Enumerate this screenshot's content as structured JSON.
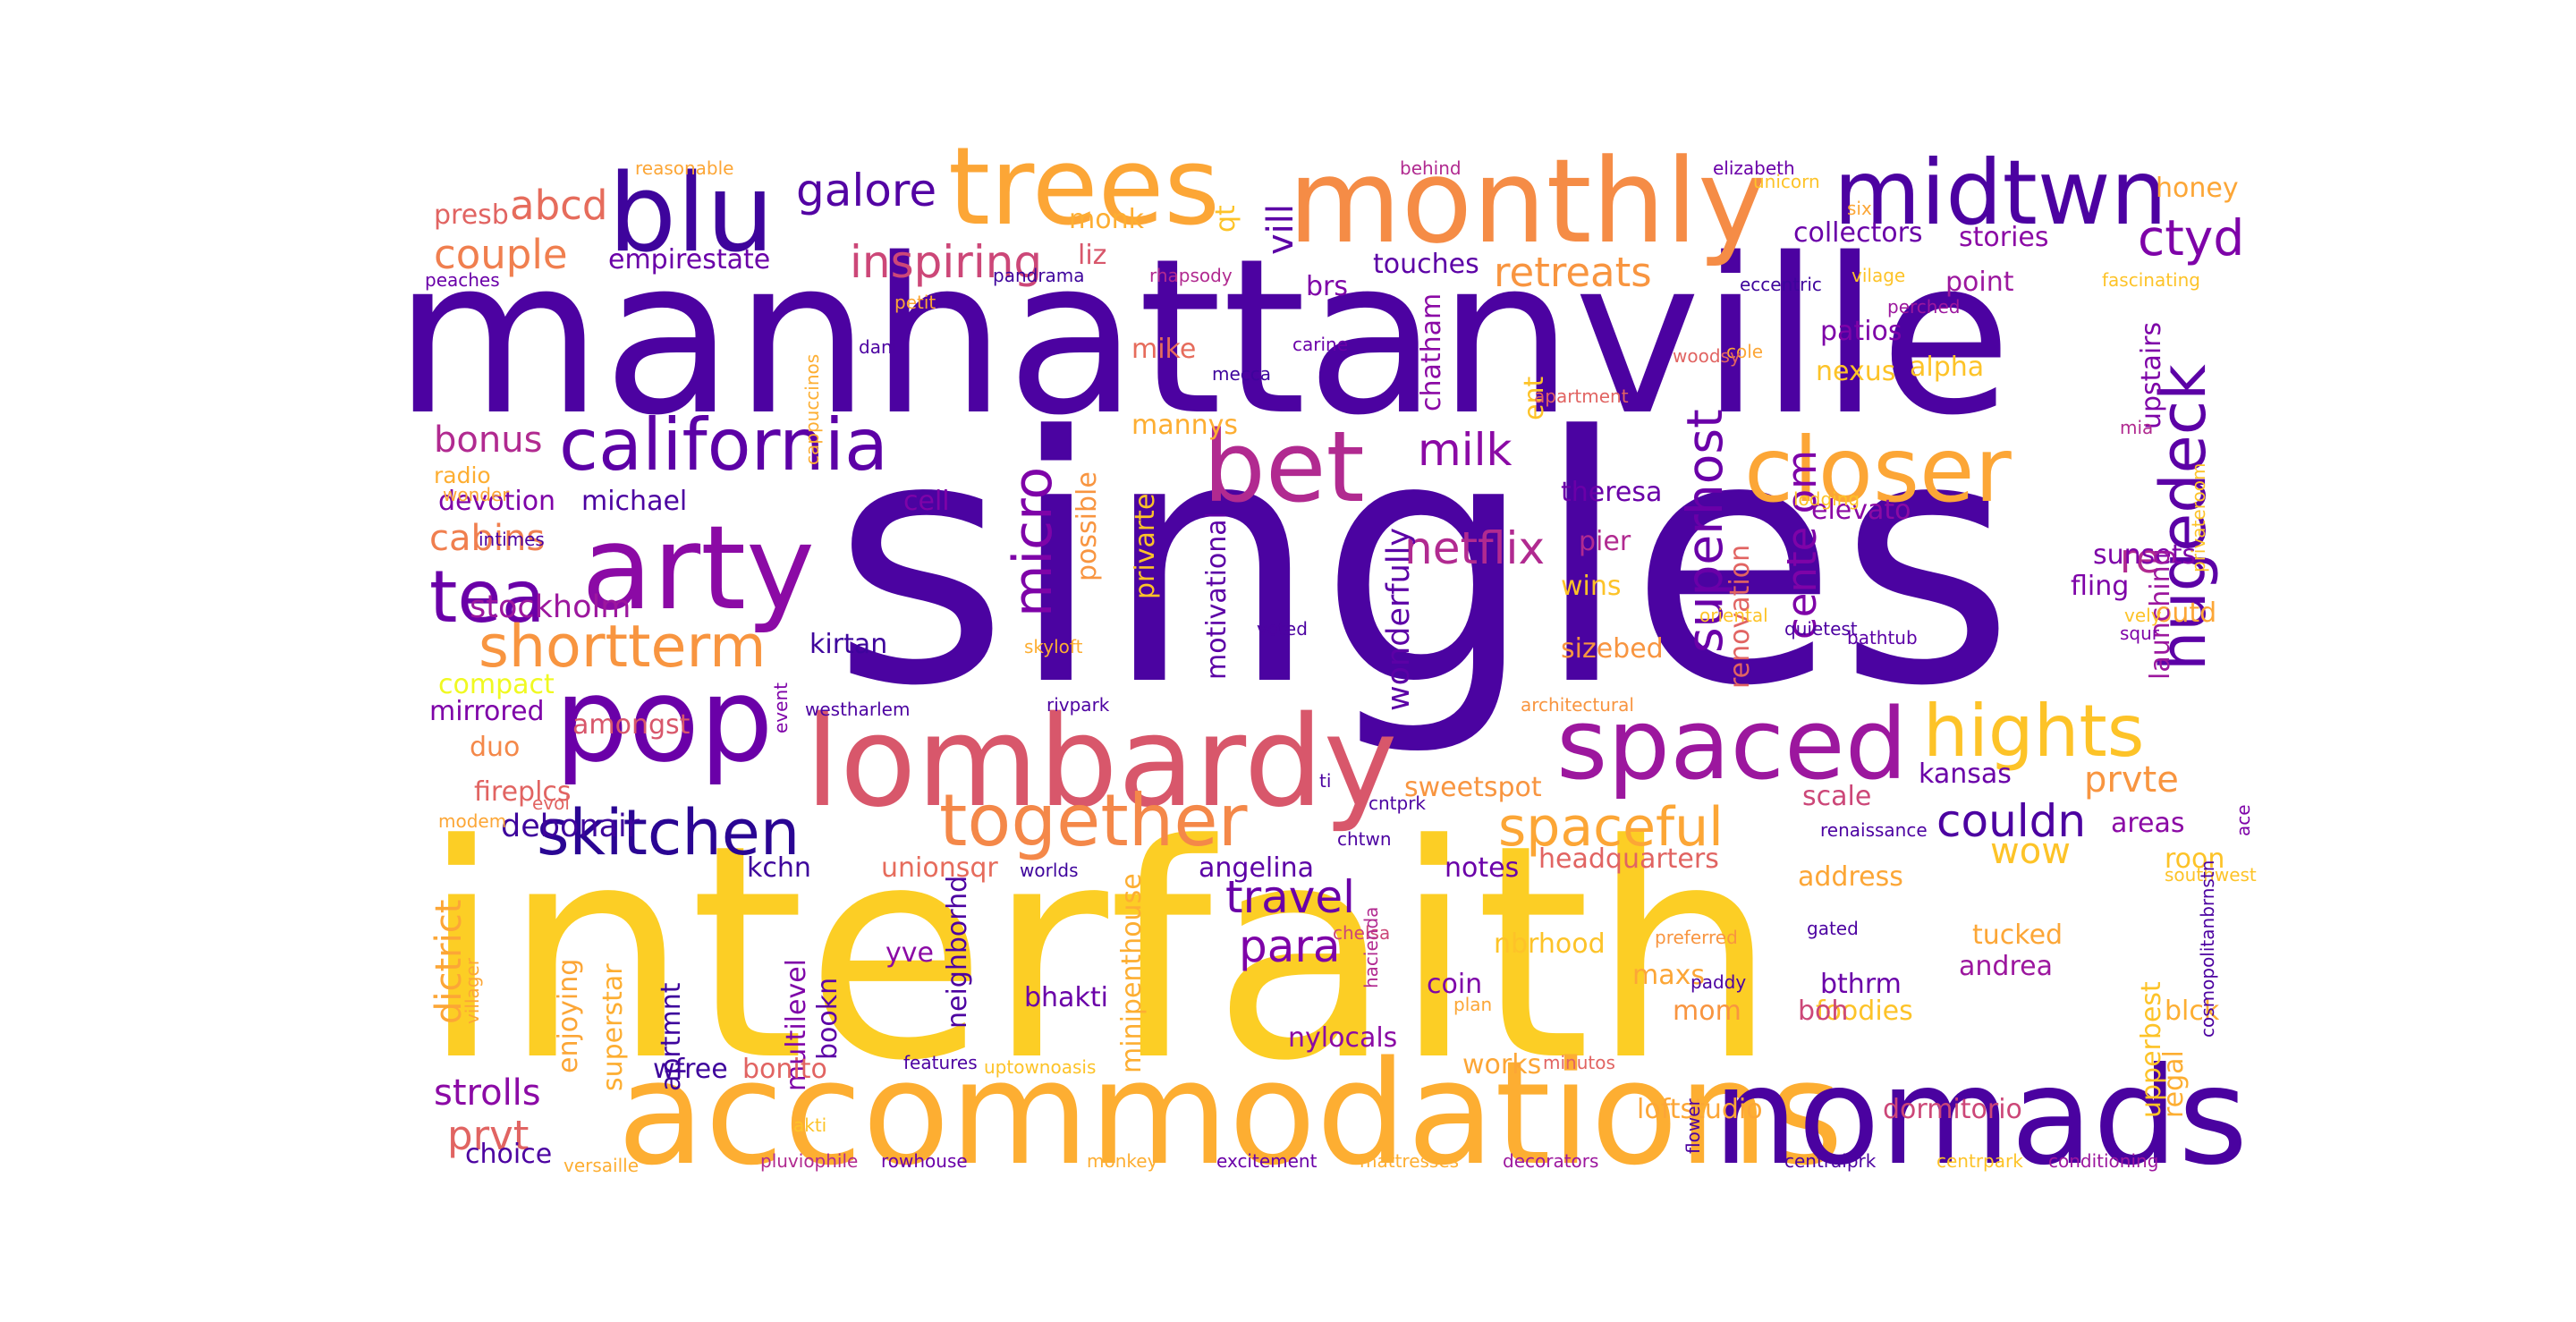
{
  "palette": {
    "deep_indigo": "#3a0ca3",
    "indigo": "#4a0aa6",
    "purple": "#6a00a8",
    "violet": "#8f0da4",
    "magenta": "#b12a90",
    "rose": "#cc4778",
    "coral": "#e16462",
    "salmon": "#f07f4f",
    "orange": "#f89540",
    "amber": "#fca636",
    "gold": "#fdc328",
    "yellow": "#f0f921",
    "sun": "#fcce25"
  },
  "words": [
    {
      "text": "singles",
      "color": "#4b03a1"
    },
    {
      "text": "manhattanville",
      "color": "#4c02a1"
    },
    {
      "text": "interfaith",
      "color": "#fcce25"
    },
    {
      "text": "accommodations",
      "color": "#fdae32"
    },
    {
      "text": "nomads",
      "color": "#4a02a0"
    },
    {
      "text": "lombardy",
      "color": "#d8576b"
    },
    {
      "text": "monthly",
      "color": "#f58c46"
    },
    {
      "text": "trees",
      "color": "#fca636"
    },
    {
      "text": "pop",
      "color": "#6a00a8"
    },
    {
      "text": "arty",
      "color": "#8b0aa5"
    },
    {
      "text": "blu",
      "color": "#3e049c"
    },
    {
      "text": "bet",
      "color": "#b12a90"
    },
    {
      "text": "closer",
      "color": "#fca636"
    },
    {
      "text": "spaced",
      "color": "#9c179e"
    },
    {
      "text": "california",
      "color": "#5c01a6"
    },
    {
      "text": "midtwn",
      "color": "#4c02a1"
    },
    {
      "text": "hights",
      "color": "#fdc328"
    },
    {
      "text": "together",
      "color": "#f48849"
    },
    {
      "text": "skitchen",
      "color": "#2a0593"
    },
    {
      "text": "tea",
      "color": "#6a00a8"
    },
    {
      "text": "shortterm",
      "color": "#f89540"
    },
    {
      "text": "spaceful",
      "color": "#fca636"
    },
    {
      "text": "hugedeck",
      "color": "#5c01a6"
    },
    {
      "text": "netflix",
      "color": "#b12a90"
    },
    {
      "text": "milk",
      "color": "#8b0aa5"
    },
    {
      "text": "superhost",
      "color": "#6a00a8"
    },
    {
      "text": "inspiring",
      "color": "#cc4778"
    },
    {
      "text": "galore",
      "color": "#5302a3"
    },
    {
      "text": "ctyd",
      "color": "#7e03a8"
    },
    {
      "text": "retreats",
      "color": "#f89540"
    },
    {
      "text": "couple",
      "color": "#f07f4f"
    },
    {
      "text": "abcd",
      "color": "#e66c5c"
    },
    {
      "text": "micro",
      "color": "#7e03a8"
    },
    {
      "text": "para",
      "color": "#7e03a8"
    },
    {
      "text": "travel",
      "color": "#6a00a8"
    },
    {
      "text": "couldn",
      "color": "#4c02a1"
    },
    {
      "text": "prvte",
      "color": "#f89540"
    },
    {
      "text": "cabins",
      "color": "#f07f4f"
    },
    {
      "text": "bonus",
      "color": "#b12a90"
    },
    {
      "text": "vill",
      "color": "#5c01a6"
    },
    {
      "text": "cente om",
      "color": "#7e03a8"
    },
    {
      "text": "dictrict",
      "color": "#fca636"
    },
    {
      "text": "strolls",
      "color": "#8b0aa5"
    },
    {
      "text": "prvt",
      "color": "#e16462"
    },
    {
      "text": "wow",
      "color": "#fdc328"
    },
    {
      "text": "re",
      "color": "#b12a90"
    },
    {
      "text": "wonderfully",
      "color": "#5c01a6"
    },
    {
      "text": "motivational",
      "color": "#5c01a6"
    },
    {
      "text": "stockholm",
      "color": "#9c179e"
    },
    {
      "text": "mirrored",
      "color": "#7e03a8"
    },
    {
      "text": "amongst",
      "color": "#d8576b"
    },
    {
      "text": "debonair",
      "color": "#3e049c"
    },
    {
      "text": "kchn",
      "color": "#3e049c"
    },
    {
      "text": "unionsqr",
      "color": "#e66c5c"
    },
    {
      "text": "angelina",
      "color": "#5c01a6"
    },
    {
      "text": "notes",
      "color": "#6a00a8"
    },
    {
      "text": "headquarters",
      "color": "#e16462"
    },
    {
      "text": "address",
      "color": "#fca636"
    },
    {
      "text": "sweetspot",
      "color": "#f89540"
    },
    {
      "text": "kansas",
      "color": "#6a00a8"
    },
    {
      "text": "scale",
      "color": "#cc4778"
    },
    {
      "text": "areas",
      "color": "#8b0aa5"
    },
    {
      "text": "roon",
      "color": "#fdc328"
    },
    {
      "text": "outd",
      "color": "#fca636"
    },
    {
      "text": "fling",
      "color": "#7e03a8"
    },
    {
      "text": "sunsets",
      "color": "#7e03a8"
    },
    {
      "text": "elevato",
      "color": "#8b0aa5"
    },
    {
      "text": "pier",
      "color": "#b12a90"
    },
    {
      "text": "wins",
      "color": "#fdc328"
    },
    {
      "text": "sizebed",
      "color": "#f89540"
    },
    {
      "text": "theresa",
      "color": "#6a00a8"
    },
    {
      "text": "mannys",
      "color": "#fdae32"
    },
    {
      "text": "mike",
      "color": "#e66c5c"
    },
    {
      "text": "liz",
      "color": "#d8576b"
    },
    {
      "text": "touches",
      "color": "#5c01a6"
    },
    {
      "text": "brs",
      "color": "#7e03a8"
    },
    {
      "text": "chatham",
      "color": "#8b0aa5"
    },
    {
      "text": "collectors",
      "color": "#6a00a8"
    },
    {
      "text": "stories",
      "color": "#8b0aa5"
    },
    {
      "text": "honey",
      "color": "#fca636"
    },
    {
      "text": "point",
      "color": "#9c179e"
    },
    {
      "text": "patios",
      "color": "#7e03a8"
    },
    {
      "text": "nexus",
      "color": "#fdc328"
    },
    {
      "text": "alpha",
      "color": "#fdc328"
    },
    {
      "text": "upstairs",
      "color": "#7e03a8"
    },
    {
      "text": "launching",
      "color": "#9c179e"
    },
    {
      "text": "renovation",
      "color": "#e16462"
    },
    {
      "text": "possible",
      "color": "#f89540"
    },
    {
      "text": "privarte",
      "color": "#fdc328"
    },
    {
      "text": "cell",
      "color": "#7e03a8"
    },
    {
      "text": "devotion",
      "color": "#7e03a8"
    },
    {
      "text": "michael",
      "color": "#4c02a1"
    },
    {
      "text": "radio",
      "color": "#fdae32"
    },
    {
      "text": "kirtan",
      "color": "#3e049c"
    },
    {
      "text": "compact",
      "color": "#f0f921"
    },
    {
      "text": "duo",
      "color": "#f48849"
    },
    {
      "text": "fireplcs",
      "color": "#e16462"
    },
    {
      "text": "empirestate",
      "color": "#6a00a8"
    },
    {
      "text": "presb",
      "color": "#e16462"
    },
    {
      "text": "monk",
      "color": "#fdae32"
    },
    {
      "text": "qt",
      "color": "#fdc328"
    },
    {
      "text": "ent",
      "color": "#fdc328"
    },
    {
      "text": "enjoying",
      "color": "#fca636"
    },
    {
      "text": "superstar",
      "color": "#fdae32"
    },
    {
      "text": "multilevel",
      "color": "#7e03a8"
    },
    {
      "text": "neighborhd",
      "color": "#4c02a1"
    },
    {
      "text": "minipenthouse",
      "color": "#fdae32"
    },
    {
      "text": "bookn",
      "color": "#5c01a6"
    },
    {
      "text": "aprtmnt",
      "color": "#3e049c"
    },
    {
      "text": "yve",
      "color": "#8b0aa5"
    },
    {
      "text": "bhakti",
      "color": "#6a00a8"
    },
    {
      "text": "nylocals",
      "color": "#8b0aa5"
    },
    {
      "text": "coin",
      "color": "#7e03a8"
    },
    {
      "text": "nbrhood",
      "color": "#fdc328"
    },
    {
      "text": "maxs",
      "color": "#fca636"
    },
    {
      "text": "mom",
      "color": "#f89540"
    },
    {
      "text": "bthrm",
      "color": "#6a00a8"
    },
    {
      "text": "foodies",
      "color": "#fdc328"
    },
    {
      "text": "boh",
      "color": "#cc4778"
    },
    {
      "text": "tucked",
      "color": "#fca636"
    },
    {
      "text": "andrea",
      "color": "#9c179e"
    },
    {
      "text": "blck",
      "color": "#fdae32"
    },
    {
      "text": "upperbest",
      "color": "#fdc328"
    },
    {
      "text": "regal",
      "color": "#fdae32"
    },
    {
      "text": "dormitorio",
      "color": "#cc4778"
    },
    {
      "text": "loftstudio",
      "color": "#fca636"
    },
    {
      "text": "works",
      "color": "#fca636"
    },
    {
      "text": "wfree",
      "color": "#3e049c"
    },
    {
      "text": "bonito",
      "color": "#e16462"
    },
    {
      "text": "choice",
      "color": "#4c02a1"
    },
    {
      "text": "reasonable",
      "color": "#fca636"
    },
    {
      "text": "peaches",
      "color": "#6a00a8"
    },
    {
      "text": "cappuccinos",
      "color": "#fdae32"
    },
    {
      "text": "dani",
      "color": "#4c02a1"
    },
    {
      "text": "petit",
      "color": "#fca636"
    },
    {
      "text": "pandrama",
      "color": "#3e049c"
    },
    {
      "text": "rhapsody",
      "color": "#b12a90"
    },
    {
      "text": "carine",
      "color": "#6a00a8"
    },
    {
      "text": "mecca",
      "color": "#3e049c"
    },
    {
      "text": "behind",
      "color": "#b12a90"
    },
    {
      "text": "elizabeth",
      "color": "#6a00a8"
    },
    {
      "text": "unicorn",
      "color": "#fdc328"
    },
    {
      "text": "six",
      "color": "#fca636"
    },
    {
      "text": "vilage",
      "color": "#fdc328"
    },
    {
      "text": "eccentric",
      "color": "#3e049c"
    },
    {
      "text": "cole",
      "color": "#fca636"
    },
    {
      "text": "perched",
      "color": "#9c179e"
    },
    {
      "text": "fascinating",
      "color": "#fdc328"
    },
    {
      "text": "woodsy",
      "color": "#e16462"
    },
    {
      "text": "mia",
      "color": "#b12a90"
    },
    {
      "text": "privateroom",
      "color": "#fdc328"
    },
    {
      "text": "lodging",
      "color": "#fdc328"
    },
    {
      "text": "apartment",
      "color": "#e16462"
    },
    {
      "text": "wonder",
      "color": "#fca636"
    },
    {
      "text": "intimes",
      "color": "#4c02a1"
    },
    {
      "text": "oriental",
      "color": "#fdc328"
    },
    {
      "text": "vely",
      "color": "#fdc328"
    },
    {
      "text": "squr",
      "color": "#7e03a8"
    },
    {
      "text": "quietest",
      "color": "#4c02a1"
    },
    {
      "text": "bathtub",
      "color": "#5c01a6"
    },
    {
      "text": "voted",
      "color": "#4c02a1"
    },
    {
      "text": "skyloft",
      "color": "#fdae32"
    },
    {
      "text": "event",
      "color": "#7e03a8"
    },
    {
      "text": "westharlem",
      "color": "#4c02a1"
    },
    {
      "text": "rivpark",
      "color": "#4c02a1"
    },
    {
      "text": "architectural",
      "color": "#f89540"
    },
    {
      "text": "ti",
      "color": "#4c02a1"
    },
    {
      "text": "cntprk",
      "color": "#4c02a1"
    },
    {
      "text": "chtwn",
      "color": "#4c02a1"
    },
    {
      "text": "renaissance",
      "color": "#4c02a1"
    },
    {
      "text": "ace",
      "color": "#7e03a8"
    },
    {
      "text": "southwest",
      "color": "#fdc328"
    },
    {
      "text": "evol",
      "color": "#e16462"
    },
    {
      "text": "modem",
      "color": "#fca636"
    },
    {
      "text": "worlds",
      "color": "#3e049c"
    },
    {
      "text": "villager",
      "color": "#fca636"
    },
    {
      "text": "chelsa",
      "color": "#cc4778"
    },
    {
      "text": "hacienda",
      "color": "#b12a90"
    },
    {
      "text": "plan",
      "color": "#fca636"
    },
    {
      "text": "preferred",
      "color": "#f89540"
    },
    {
      "text": "paddy",
      "color": "#4c02a1"
    },
    {
      "text": "gated",
      "color": "#4c02a1"
    },
    {
      "text": "cosmopolitanbrnstn",
      "color": "#4c02a1"
    },
    {
      "text": "features",
      "color": "#4c02a1"
    },
    {
      "text": "uptownoasis",
      "color": "#fdc328"
    },
    {
      "text": "minutos",
      "color": "#e16462"
    },
    {
      "text": "flower",
      "color": "#4c02a1"
    },
    {
      "text": "akti",
      "color": "#fdc328"
    },
    {
      "text": "versaille",
      "color": "#fdae32"
    },
    {
      "text": "pluviophile",
      "color": "#b12a90"
    },
    {
      "text": "rowhouse",
      "color": "#6a00a8"
    },
    {
      "text": "monkey",
      "color": "#fdae32"
    },
    {
      "text": "excitement",
      "color": "#6a00a8"
    },
    {
      "text": "mattresses",
      "color": "#fdae32"
    },
    {
      "text": "decorators",
      "color": "#9c179e"
    },
    {
      "text": "centralprk",
      "color": "#4c02a1"
    },
    {
      "text": "centrpark",
      "color": "#fdc328"
    },
    {
      "text": "conditioning",
      "color": "#9c179e"
    }
  ]
}
